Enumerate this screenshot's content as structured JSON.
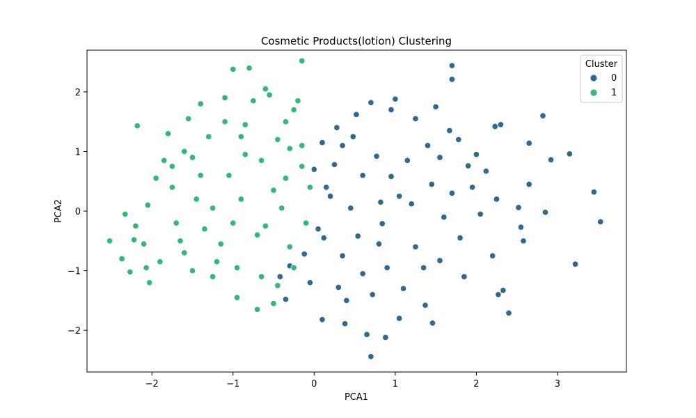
{
  "chart_data": {
    "type": "scatter",
    "title": "Cosmetic Products(lotion) Clustering",
    "xlabel": "PCA1",
    "ylabel": "PCA2",
    "xlim": [
      -2.8,
      3.85
    ],
    "ylim": [
      -2.7,
      2.7
    ],
    "xticks": [
      -2,
      -1,
      0,
      1,
      2,
      3
    ],
    "yticks": [
      -2,
      -1,
      0,
      1,
      2
    ],
    "xtick_labels": [
      "−2",
      "−1",
      "0",
      "1",
      "2",
      "3"
    ],
    "ytick_labels": [
      "−2",
      "−1",
      "0",
      "1",
      "2"
    ],
    "grid": false,
    "legend": {
      "title": "Cluster",
      "placement": "top-right",
      "entries": [
        {
          "label": "0",
          "color": "#31688e"
        },
        {
          "label": "1",
          "color": "#35b779"
        }
      ]
    },
    "series": [
      {
        "cluster": "0",
        "color": "#31688e",
        "points": [
          [
            1.7,
            2.44
          ],
          [
            1.7,
            2.21
          ],
          [
            1.5,
            1.75
          ],
          [
            2.82,
            1.6
          ],
          [
            2.3,
            1.45
          ],
          [
            2.23,
            1.42
          ],
          [
            2.65,
            1.14
          ],
          [
            3.15,
            0.96
          ],
          [
            2.92,
            0.86
          ],
          [
            3.45,
            0.32
          ],
          [
            3.53,
            -0.18
          ],
          [
            3.22,
            -0.89
          ],
          [
            2.4,
            -1.71
          ],
          [
            2.33,
            -1.33
          ],
          [
            2.27,
            -1.4
          ],
          [
            2.58,
            -0.5
          ],
          [
            2.55,
            -0.27
          ],
          [
            2.85,
            -0.02
          ],
          [
            2.52,
            0.06
          ],
          [
            2.65,
            0.45
          ],
          [
            1.67,
            1.35
          ],
          [
            1.78,
            1.2
          ],
          [
            1.9,
            0.76
          ],
          [
            2.12,
            0.67
          ],
          [
            1.55,
            -0.83
          ],
          [
            1.46,
            -1.88
          ],
          [
            1.37,
            -1.58
          ],
          [
            0.65,
            -2.07
          ],
          [
            0.7,
            -2.44
          ],
          [
            0.88,
            -2.12
          ],
          [
            0.38,
            -1.89
          ],
          [
            0.1,
            -1.82
          ],
          [
            1.05,
            -1.8
          ],
          [
            0.54,
            -0.42
          ],
          [
            0.84,
            -0.21
          ],
          [
            1.2,
            0.12
          ],
          [
            1.45,
            0.45
          ],
          [
            0.77,
            0.92
          ],
          [
            0.95,
            0.58
          ],
          [
            0.35,
            1.1
          ],
          [
            0.25,
            0.78
          ],
          [
            0.15,
            0.4
          ],
          [
            0.05,
            -0.3
          ],
          [
            -0.12,
            -0.72
          ],
          [
            -0.3,
            -0.92
          ],
          [
            -0.42,
            -1.1
          ],
          [
            -0.35,
            -1.48
          ],
          [
            0.3,
            -1.28
          ],
          [
            0.6,
            -1.05
          ],
          [
            1.1,
            -1.3
          ],
          [
            1.35,
            -0.95
          ],
          [
            1.8,
            -0.45
          ],
          [
            2.05,
            -0.05
          ],
          [
            1.25,
            1.55
          ],
          [
            0.7,
            1.82
          ],
          [
            0.52,
            1.62
          ],
          [
            0.28,
            1.4
          ],
          [
            1.0,
            1.88
          ],
          [
            0.95,
            1.7
          ],
          [
            0.1,
            1.15
          ],
          [
            0.45,
            0.05
          ],
          [
            0.8,
            -0.55
          ],
          [
            1.55,
            0.9
          ],
          [
            1.95,
            0.4
          ],
          [
            2.25,
            0.2
          ],
          [
            1.05,
            0.25
          ],
          [
            0.35,
            -0.75
          ],
          [
            -0.05,
            -1.2
          ],
          [
            0.72,
            -1.4
          ],
          [
            1.6,
            -0.1
          ],
          [
            1.25,
            -0.6
          ],
          [
            0.2,
            0.25
          ],
          [
            0.6,
            0.6
          ],
          [
            1.15,
            0.85
          ],
          [
            0.0,
            0.7
          ],
          [
            1.85,
            -1.1
          ],
          [
            2.2,
            -0.75
          ],
          [
            0.9,
            -0.95
          ],
          [
            0.48,
            1.25
          ],
          [
            1.4,
            1.1
          ],
          [
            0.12,
            -0.45
          ],
          [
            0.82,
            0.15
          ],
          [
            1.7,
            0.3
          ],
          [
            0.4,
            -1.5
          ],
          [
            2.0,
            0.95
          ]
        ]
      },
      {
        "cluster": "1",
        "color": "#35b779",
        "points": [
          [
            -2.52,
            -0.5
          ],
          [
            -2.37,
            -0.8
          ],
          [
            -2.33,
            -0.05
          ],
          [
            -2.27,
            -1.02
          ],
          [
            -2.22,
            -0.48
          ],
          [
            -2.18,
            1.43
          ],
          [
            -2.07,
            -0.95
          ],
          [
            -2.03,
            -1.2
          ],
          [
            -2.05,
            0.1
          ],
          [
            -1.85,
            0.85
          ],
          [
            -1.75,
            0.4
          ],
          [
            -1.6,
            -0.7
          ],
          [
            -1.55,
            1.55
          ],
          [
            -1.5,
            0.9
          ],
          [
            -1.45,
            0.2
          ],
          [
            -1.35,
            -0.3
          ],
          [
            -1.25,
            -1.1
          ],
          [
            -1.1,
            1.9
          ],
          [
            -1.0,
            2.38
          ],
          [
            -0.8,
            2.4
          ],
          [
            -0.85,
            1.45
          ],
          [
            -0.65,
            0.85
          ],
          [
            -0.6,
            -0.25
          ],
          [
            -0.5,
            -1.55
          ],
          [
            -0.7,
            -1.65
          ],
          [
            -0.15,
            2.52
          ],
          [
            -0.25,
            1.7
          ],
          [
            -0.35,
            0.55
          ],
          [
            -0.3,
            -0.6
          ],
          [
            -0.15,
            1.1
          ],
          [
            -0.1,
            -0.2
          ],
          [
            -0.45,
            1.2
          ],
          [
            -0.9,
            0.2
          ],
          [
            -1.15,
            -0.55
          ],
          [
            -1.05,
            0.6
          ],
          [
            -1.7,
            -0.2
          ],
          [
            -1.9,
            -0.85
          ],
          [
            -1.3,
            1.25
          ],
          [
            -0.75,
            1.85
          ],
          [
            -0.55,
            1.95
          ],
          [
            -0.2,
            1.85
          ],
          [
            -0.4,
            0.05
          ],
          [
            -0.65,
            -1.1
          ],
          [
            -0.95,
            -1.45
          ],
          [
            -1.2,
            -0.85
          ],
          [
            -1.4,
            0.6
          ],
          [
            -1.6,
            1.0
          ],
          [
            -1.95,
            0.55
          ],
          [
            -2.1,
            -0.55
          ],
          [
            -0.85,
            0.95
          ],
          [
            -0.5,
            0.35
          ],
          [
            -0.25,
            -0.95
          ],
          [
            -1.1,
            1.5
          ],
          [
            -1.5,
            -1.0
          ],
          [
            -0.7,
            -0.4
          ],
          [
            -0.15,
            0.75
          ],
          [
            -0.35,
            1.5
          ],
          [
            -1.8,
            1.3
          ],
          [
            -0.6,
            2.05
          ],
          [
            -1.25,
            0.05
          ],
          [
            -0.95,
            -0.95
          ],
          [
            -2.2,
            -0.25
          ],
          [
            -0.45,
            -1.25
          ],
          [
            -1.65,
            -0.5
          ],
          [
            -0.05,
            0.4
          ],
          [
            -1.4,
            1.8
          ],
          [
            -0.9,
            1.25
          ],
          [
            -0.3,
            1.05
          ],
          [
            -1.0,
            -0.2
          ],
          [
            -1.75,
            0.75
          ]
        ]
      }
    ]
  }
}
